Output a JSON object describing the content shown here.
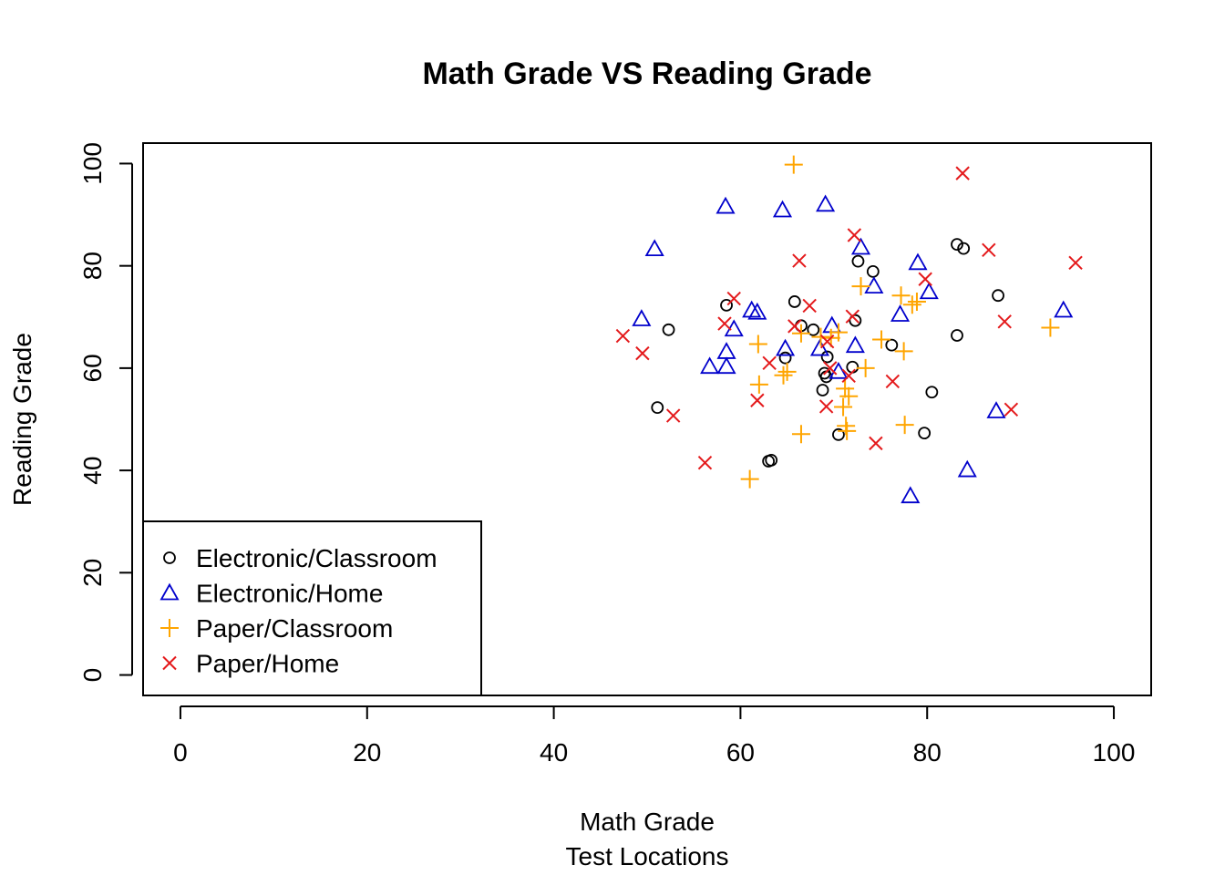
{
  "chart_data": {
    "type": "scatter",
    "title": "Math Grade VS Reading Grade",
    "xlabel": "Math Grade",
    "xlabel2": "Test Locations",
    "ylabel": "Reading Grade",
    "xlim": [
      -4,
      104
    ],
    "ylim": [
      -4,
      104
    ],
    "xticks": [
      0,
      20,
      40,
      60,
      80,
      100
    ],
    "yticks": [
      0,
      20,
      40,
      60,
      80,
      100
    ],
    "grid": false,
    "legend_position": "bottom-left",
    "series": [
      {
        "name": "Electronic/Classroom",
        "color": "#000000",
        "marker": "circle",
        "points": [
          [
            58.5,
            72.3
          ],
          [
            52.3,
            67.5
          ],
          [
            51.1,
            52.3
          ],
          [
            63.0,
            41.8
          ],
          [
            63.3,
            42.0
          ],
          [
            64.8,
            62.0
          ],
          [
            65.8,
            73.0
          ],
          [
            66.5,
            68.3
          ],
          [
            67.8,
            67.5
          ],
          [
            68.8,
            55.7
          ],
          [
            69.2,
            58.3
          ],
          [
            69.3,
            62.2
          ],
          [
            69.0,
            59.0
          ],
          [
            70.5,
            47.0
          ],
          [
            72.0,
            60.2
          ],
          [
            72.3,
            69.3
          ],
          [
            72.6,
            80.9
          ],
          [
            74.2,
            78.9
          ],
          [
            76.2,
            64.5
          ],
          [
            79.7,
            47.3
          ],
          [
            80.5,
            55.3
          ],
          [
            83.2,
            84.2
          ],
          [
            83.9,
            83.4
          ],
          [
            83.2,
            66.4
          ],
          [
            87.6,
            74.2
          ]
        ]
      },
      {
        "name": "Electronic/Home",
        "color": "#0000cc",
        "marker": "triangle",
        "points": [
          [
            50.8,
            83.3
          ],
          [
            49.4,
            69.6
          ],
          [
            56.7,
            60.3
          ],
          [
            58.4,
            91.6
          ],
          [
            58.5,
            63.2
          ],
          [
            58.5,
            60.3
          ],
          [
            59.3,
            67.6
          ],
          [
            61.2,
            71.3
          ],
          [
            61.8,
            70.9
          ],
          [
            64.5,
            90.9
          ],
          [
            64.8,
            63.8
          ],
          [
            68.5,
            63.8
          ],
          [
            69.1,
            92.0
          ],
          [
            69.8,
            68.3
          ],
          [
            70.5,
            59.3
          ],
          [
            72.3,
            64.4
          ],
          [
            72.9,
            83.6
          ],
          [
            74.3,
            76.0
          ],
          [
            77.1,
            70.5
          ],
          [
            78.2,
            35.0
          ],
          [
            79.0,
            80.6
          ],
          [
            80.2,
            74.9
          ],
          [
            84.3,
            40.1
          ],
          [
            87.4,
            51.6
          ],
          [
            94.6,
            71.3
          ]
        ]
      },
      {
        "name": "Paper/Classroom",
        "color": "#ffa500",
        "marker": "plus",
        "points": [
          [
            65.7,
            99.8
          ],
          [
            61.0,
            38.3
          ],
          [
            62.0,
            56.8
          ],
          [
            61.9,
            64.7
          ],
          [
            64.6,
            58.6
          ],
          [
            65.0,
            59.3
          ],
          [
            66.5,
            66.8
          ],
          [
            66.5,
            47.1
          ],
          [
            68.6,
            66.1
          ],
          [
            69.7,
            65.9
          ],
          [
            70.5,
            67.0
          ],
          [
            71.0,
            52.4
          ],
          [
            71.2,
            56.0
          ],
          [
            71.3,
            48.7
          ],
          [
            71.4,
            47.7
          ],
          [
            72.9,
            76.0
          ],
          [
            73.4,
            60.0
          ],
          [
            75.1,
            65.6
          ],
          [
            77.2,
            74.2
          ],
          [
            77.5,
            63.3
          ],
          [
            77.6,
            48.9
          ],
          [
            78.4,
            72.4
          ],
          [
            78.9,
            73.0
          ],
          [
            93.2,
            67.9
          ],
          [
            71.6,
            54.5
          ]
        ]
      },
      {
        "name": "Paper/Home",
        "color": "#e41a1c",
        "marker": "x",
        "points": [
          [
            47.4,
            66.3
          ],
          [
            49.5,
            62.9
          ],
          [
            52.8,
            50.7
          ],
          [
            56.2,
            41.5
          ],
          [
            58.3,
            68.7
          ],
          [
            59.3,
            73.6
          ],
          [
            61.8,
            53.7
          ],
          [
            63.1,
            61.0
          ],
          [
            65.8,
            68.2
          ],
          [
            66.3,
            81.0
          ],
          [
            67.4,
            72.2
          ],
          [
            69.2,
            52.5
          ],
          [
            69.3,
            65.2
          ],
          [
            71.6,
            58.5
          ],
          [
            72.0,
            70.1
          ],
          [
            72.2,
            86.0
          ],
          [
            74.5,
            45.3
          ],
          [
            76.3,
            57.4
          ],
          [
            79.8,
            77.4
          ],
          [
            83.8,
            98.1
          ],
          [
            86.6,
            83.1
          ],
          [
            88.3,
            69.1
          ],
          [
            89.0,
            51.9
          ],
          [
            95.9,
            80.6
          ],
          [
            69.6,
            60.0
          ]
        ]
      }
    ]
  }
}
